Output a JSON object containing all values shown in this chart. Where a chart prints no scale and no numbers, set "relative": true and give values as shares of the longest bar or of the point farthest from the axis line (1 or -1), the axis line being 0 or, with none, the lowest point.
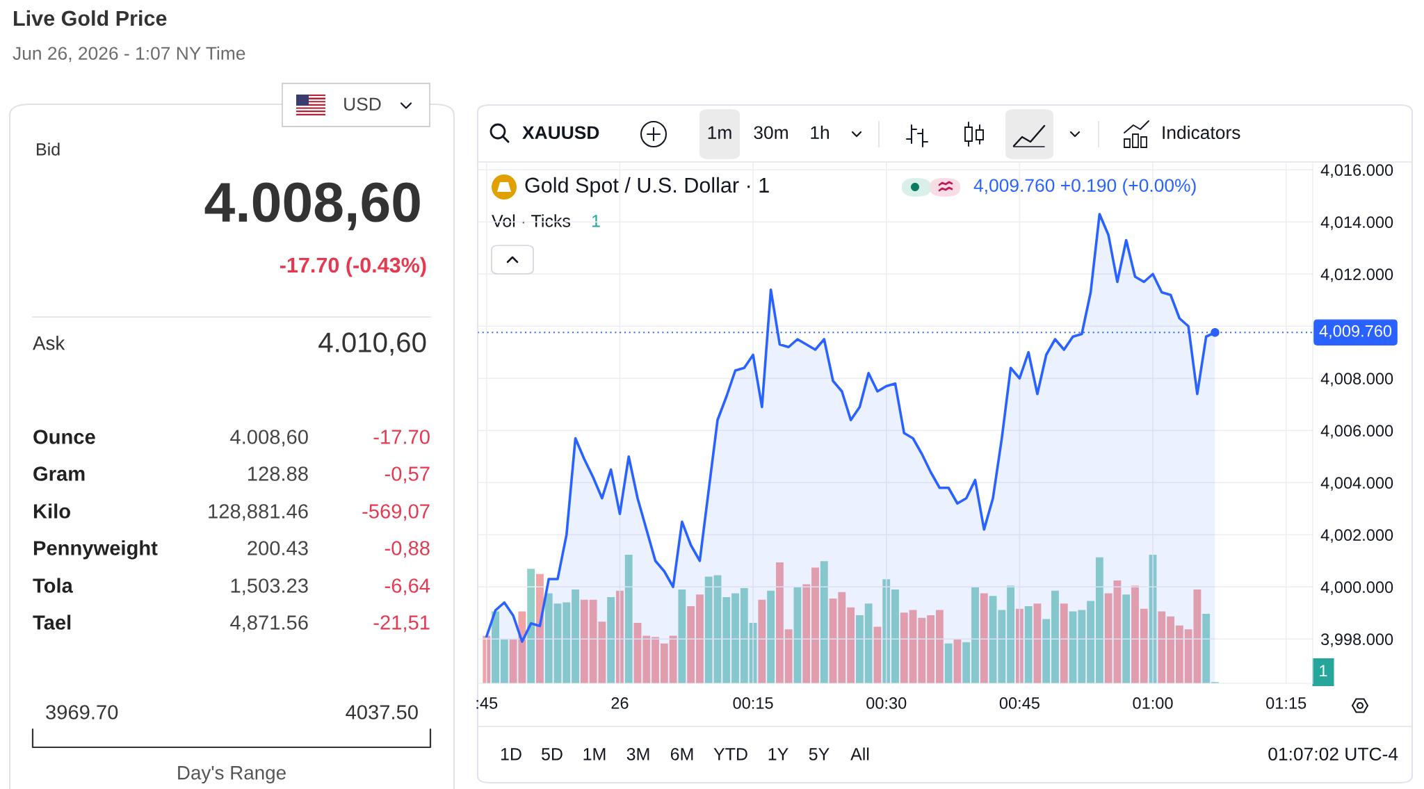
{
  "chart_data": [
    {
      "type": "other",
      "title": "Live Gold Price",
      "subtitle": "Jun 26, 2026 - 1:07 NY Time",
      "annotations": [
        "USD",
        "Bid",
        "4.008,60",
        "-17.70 (-0.43%)",
        "Ask",
        "4.010,60",
        "Ounce",
        "4.008,60",
        "-17.70",
        "Gram",
        "128.88",
        "-0,57",
        "Kilo",
        "128,881.46",
        "-569,07",
        "Pennyweight",
        "200.43",
        "-0,88",
        "Tola",
        "1,503.23",
        "-6,64",
        "Tael",
        "4,871.56",
        "-21,51",
        "3969.70",
        "4037.50",
        "Day's Range"
      ]
    },
    {
      "type": "area",
      "title": "Gold Spot / U.S. Dollar · 1",
      "x": [
        "2026-06-25T23:45",
        "2026-06-25T23:46",
        "2026-06-25T23:47",
        "2026-06-25T23:48",
        "2026-06-25T23:49",
        "2026-06-25T23:50",
        "2026-06-25T23:51",
        "2026-06-25T23:52",
        "2026-06-25T23:53",
        "2026-06-25T23:54",
        "2026-06-25T23:55",
        "2026-06-25T23:56",
        "2026-06-25T23:57",
        "2026-06-25T23:58",
        "2026-06-25T23:59",
        "2026-06-26T00:00",
        "2026-06-26T00:01",
        "2026-06-26T00:02",
        "2026-06-26T00:03",
        "2026-06-26T00:04",
        "2026-06-26T00:05",
        "2026-06-26T00:06",
        "2026-06-26T00:07",
        "2026-06-26T00:08",
        "2026-06-26T00:09",
        "2026-06-26T00:10",
        "2026-06-26T00:11",
        "2026-06-26T00:12",
        "2026-06-26T00:13",
        "2026-06-26T00:14",
        "2026-06-26T00:15",
        "2026-06-26T00:16",
        "2026-06-26T00:17",
        "2026-06-26T00:18",
        "2026-06-26T00:19",
        "2026-06-26T00:20",
        "2026-06-26T00:21",
        "2026-06-26T00:22",
        "2026-06-26T00:23",
        "2026-06-26T00:24",
        "2026-06-26T00:25",
        "2026-06-26T00:26",
        "2026-06-26T00:27",
        "2026-06-26T00:28",
        "2026-06-26T00:29",
        "2026-06-26T00:30",
        "2026-06-26T00:31",
        "2026-06-26T00:32",
        "2026-06-26T00:33",
        "2026-06-26T00:34",
        "2026-06-26T00:35",
        "2026-06-26T00:36",
        "2026-06-26T00:37",
        "2026-06-26T00:38",
        "2026-06-26T00:39",
        "2026-06-26T00:40",
        "2026-06-26T00:41",
        "2026-06-26T00:42",
        "2026-06-26T00:43",
        "2026-06-26T00:44",
        "2026-06-26T00:45",
        "2026-06-26T00:46",
        "2026-06-26T00:47",
        "2026-06-26T00:48",
        "2026-06-26T00:49",
        "2026-06-26T00:50",
        "2026-06-26T00:51",
        "2026-06-26T00:52",
        "2026-06-26T00:53",
        "2026-06-26T00:54",
        "2026-06-26T00:55",
        "2026-06-26T00:56",
        "2026-06-26T00:57",
        "2026-06-26T00:58",
        "2026-06-26T00:59",
        "2026-06-26T01:00",
        "2026-06-26T01:01",
        "2026-06-26T01:02",
        "2026-06-26T01:03",
        "2026-06-26T01:04",
        "2026-06-26T01:05",
        "2026-06-26T01:06",
        "2026-06-26T01:07"
      ],
      "series": [
        {
          "type": "area",
          "color": "#2962ff",
          "values": [
            3998.1,
            3999.1,
            3999.4,
            3998.9,
            3997.9,
            3998.6,
            3998.5,
            4000.3,
            4000.3,
            4002.0,
            4005.7,
            4004.9,
            4004.2,
            4003.4,
            4004.5,
            4002.8,
            4005.0,
            4003.4,
            4002.2,
            4001.0,
            4000.6,
            4000.0,
            4002.5,
            4001.6,
            4001.0,
            4003.7,
            4006.4,
            4007.3,
            4008.3,
            4008.4,
            4008.9,
            4006.9,
            4011.4,
            4009.3,
            4009.2,
            4009.5,
            4009.3,
            4009.1,
            4009.5,
            4007.9,
            4007.5,
            4006.4,
            4006.9,
            4008.2,
            4007.5,
            4007.7,
            4007.8,
            4005.9,
            4005.7,
            4005.1,
            4004.4,
            4003.8,
            4003.8,
            4003.2,
            4003.4,
            4004.1,
            4002.2,
            4003.4,
            4005.7,
            4008.4,
            4008.0,
            4009.0,
            4007.4,
            4008.9,
            4009.5,
            4009.1,
            4009.6,
            4009.7,
            4011.3,
            4014.3,
            4013.5,
            4011.7,
            4013.3,
            4011.9,
            4011.7,
            4012.0,
            4011.3,
            4011.2,
            4010.3,
            4010.0,
            4007.4,
            4009.6,
            4009.76
          ]
        },
        {
          "type": "scatter",
          "color": "#2962ff",
          "x": [
            "2026-06-26T01:07"
          ],
          "values": [
            4009.76
          ]
        }
      ],
      "xlim": [
        "2026-06-25T23:44",
        "2026-06-26T01:18"
      ],
      "xticks": [
        {
          "value": "2026-06-25T23:45",
          "label": ":45"
        },
        {
          "value": "2026-06-26T00:00",
          "label": "26"
        },
        {
          "value": "2026-06-26T00:15",
          "label": "00:15"
        },
        {
          "value": "2026-06-26T00:30",
          "label": "00:30"
        },
        {
          "value": "2026-06-26T00:45",
          "label": "00:45"
        },
        {
          "value": "2026-06-26T01:00",
          "label": "01:00"
        },
        {
          "value": "2026-06-26T01:15",
          "label": "01:15"
        }
      ],
      "ylim": [
        3996.3,
        4016.3
      ],
      "yticks": [
        {
          "value": 3998,
          "label": "3,998.000"
        },
        {
          "value": 4000,
          "label": "4,000.000"
        },
        {
          "value": 4002,
          "label": "4,002.000"
        },
        {
          "value": 4004,
          "label": "4,004.000"
        },
        {
          "value": 4006,
          "label": "4,006.000"
        },
        {
          "value": 4008,
          "label": "4,008.000"
        },
        {
          "value": 4010,
          "label": null
        },
        {
          "value": 4012,
          "label": "4,012.000"
        },
        {
          "value": 4014,
          "label": "4,014.000"
        },
        {
          "value": 4016,
          "label": "4,016.000"
        }
      ],
      "grid": true,
      "ref_lines": [
        {
          "axis": "y",
          "value": 4009.76,
          "label": "4,009.760",
          "color": "#2962ff",
          "line_style": "dotted"
        }
      ],
      "annotations": [
        "XAUUSD",
        "1m",
        "30m",
        "1h",
        "Indicators",
        "4,009.760 +0.190 (+0.00%)",
        "1D",
        "5D",
        "1M",
        "3M",
        "6M",
        "YTD",
        "1Y",
        "5Y",
        "All",
        "01:07:02 UTC-4"
      ]
    },
    {
      "type": "bar",
      "title": "Vol · Ticks",
      "relative": true,
      "x": [
        "2026-06-25T23:45",
        "2026-06-25T23:46",
        "2026-06-25T23:47",
        "2026-06-25T23:48",
        "2026-06-25T23:49",
        "2026-06-25T23:50",
        "2026-06-25T23:51",
        "2026-06-25T23:52",
        "2026-06-25T23:53",
        "2026-06-25T23:54",
        "2026-06-25T23:55",
        "2026-06-25T23:56",
        "2026-06-25T23:57",
        "2026-06-25T23:58",
        "2026-06-25T23:59",
        "2026-06-26T00:00",
        "2026-06-26T00:01",
        "2026-06-26T00:02",
        "2026-06-26T00:03",
        "2026-06-26T00:04",
        "2026-06-26T00:05",
        "2026-06-26T00:06",
        "2026-06-26T00:07",
        "2026-06-26T00:08",
        "2026-06-26T00:09",
        "2026-06-26T00:10",
        "2026-06-26T00:11",
        "2026-06-26T00:12",
        "2026-06-26T00:13",
        "2026-06-26T00:14",
        "2026-06-26T00:15",
        "2026-06-26T00:16",
        "2026-06-26T00:17",
        "2026-06-26T00:18",
        "2026-06-26T00:19",
        "2026-06-26T00:20",
        "2026-06-26T00:21",
        "2026-06-26T00:22",
        "2026-06-26T00:23",
        "2026-06-26T00:24",
        "2026-06-26T00:25",
        "2026-06-26T00:26",
        "2026-06-26T00:27",
        "2026-06-26T00:28",
        "2026-06-26T00:29",
        "2026-06-26T00:30",
        "2026-06-26T00:31",
        "2026-06-26T00:32",
        "2026-06-26T00:33",
        "2026-06-26T00:34",
        "2026-06-26T00:35",
        "2026-06-26T00:36",
        "2026-06-26T00:37",
        "2026-06-26T00:38",
        "2026-06-26T00:39",
        "2026-06-26T00:40",
        "2026-06-26T00:41",
        "2026-06-26T00:42",
        "2026-06-26T00:43",
        "2026-06-26T00:44",
        "2026-06-26T00:45",
        "2026-06-26T00:46",
        "2026-06-26T00:47",
        "2026-06-26T00:48",
        "2026-06-26T00:49",
        "2026-06-26T00:50",
        "2026-06-26T00:51",
        "2026-06-26T00:52",
        "2026-06-26T00:53",
        "2026-06-26T00:54",
        "2026-06-26T00:55",
        "2026-06-26T00:56",
        "2026-06-26T00:57",
        "2026-06-26T00:58",
        "2026-06-26T00:59",
        "2026-06-26T01:00",
        "2026-06-26T01:01",
        "2026-06-26T01:02",
        "2026-06-26T01:03",
        "2026-06-26T01:04",
        "2026-06-26T01:05",
        "2026-06-26T01:06",
        "2026-06-26T01:07"
      ],
      "values": [
        0.37,
        0.56,
        0.34,
        0.34,
        0.56,
        0.89,
        0.85,
        0.7,
        0.62,
        0.63,
        0.73,
        0.65,
        0.65,
        0.48,
        0.67,
        0.72,
        1.0,
        0.47,
        0.37,
        0.36,
        0.31,
        0.37,
        0.73,
        0.6,
        0.69,
        0.83,
        0.84,
        0.67,
        0.7,
        0.74,
        0.47,
        0.65,
        0.72,
        0.94,
        0.42,
        0.75,
        0.77,
        0.9,
        0.95,
        0.66,
        0.71,
        0.59,
        0.53,
        0.62,
        0.44,
        0.81,
        0.73,
        0.55,
        0.57,
        0.51,
        0.53,
        0.57,
        0.31,
        0.34,
        0.32,
        0.75,
        0.7,
        0.68,
        0.57,
        0.76,
        0.58,
        0.6,
        0.62,
        0.5,
        0.72,
        0.62,
        0.56,
        0.57,
        0.64,
        0.98,
        0.7,
        0.8,
        0.69,
        0.76,
        0.58,
        1.0,
        0.56,
        0.52,
        0.45,
        0.42,
        0.73,
        0.54,
        0.01
      ],
      "colors": [
        "#f2a3a5",
        "#8fd0c8",
        "#8fd0c8",
        "#f2a3a5",
        "#f2a3a5",
        "#8fd0c8",
        "#f2a3a5",
        "#8fd0c8",
        "#8fd0c8",
        "#8fd0c8",
        "#8fd0c8",
        "#f2a3a5",
        "#f2a3a5",
        "#f2a3a5",
        "#8fd0c8",
        "#f2a3a5",
        "#8fd0c8",
        "#f2a3a5",
        "#f2a3a5",
        "#f2a3a5",
        "#f2a3a5",
        "#f2a3a5",
        "#8fd0c8",
        "#f2a3a5",
        "#f2a3a5",
        "#8fd0c8",
        "#8fd0c8",
        "#8fd0c8",
        "#8fd0c8",
        "#8fd0c8",
        "#8fd0c8",
        "#f2a3a5",
        "#8fd0c8",
        "#f2a3a5",
        "#f2a3a5",
        "#8fd0c8",
        "#f2a3a5",
        "#f2a3a5",
        "#8fd0c8",
        "#f2a3a5",
        "#f2a3a5",
        "#f2a3a5",
        "#8fd0c8",
        "#8fd0c8",
        "#f2a3a5",
        "#8fd0c8",
        "#8fd0c8",
        "#f2a3a5",
        "#f2a3a5",
        "#f2a3a5",
        "#f2a3a5",
        "#f2a3a5",
        "#8fd0c8",
        "#f2a3a5",
        "#8fd0c8",
        "#8fd0c8",
        "#f2a3a5",
        "#8fd0c8",
        "#8fd0c8",
        "#8fd0c8",
        "#f2a3a5",
        "#8fd0c8",
        "#f2a3a5",
        "#8fd0c8",
        "#8fd0c8",
        "#f2a3a5",
        "#8fd0c8",
        "#8fd0c8",
        "#8fd0c8",
        "#8fd0c8",
        "#f2a3a5",
        "#f2a3a5",
        "#8fd0c8",
        "#f2a3a5",
        "#f2a3a5",
        "#8fd0c8",
        "#f2a3a5",
        "#f2a3a5",
        "#f2a3a5",
        "#f2a3a5",
        "#f2a3a5",
        "#8fd0c8",
        "#8fd0c8"
      ],
      "xlim": [
        "2026-06-25T23:44",
        "2026-06-26T01:18"
      ],
      "annotations": [
        "1",
        "1"
      ]
    }
  ]
}
